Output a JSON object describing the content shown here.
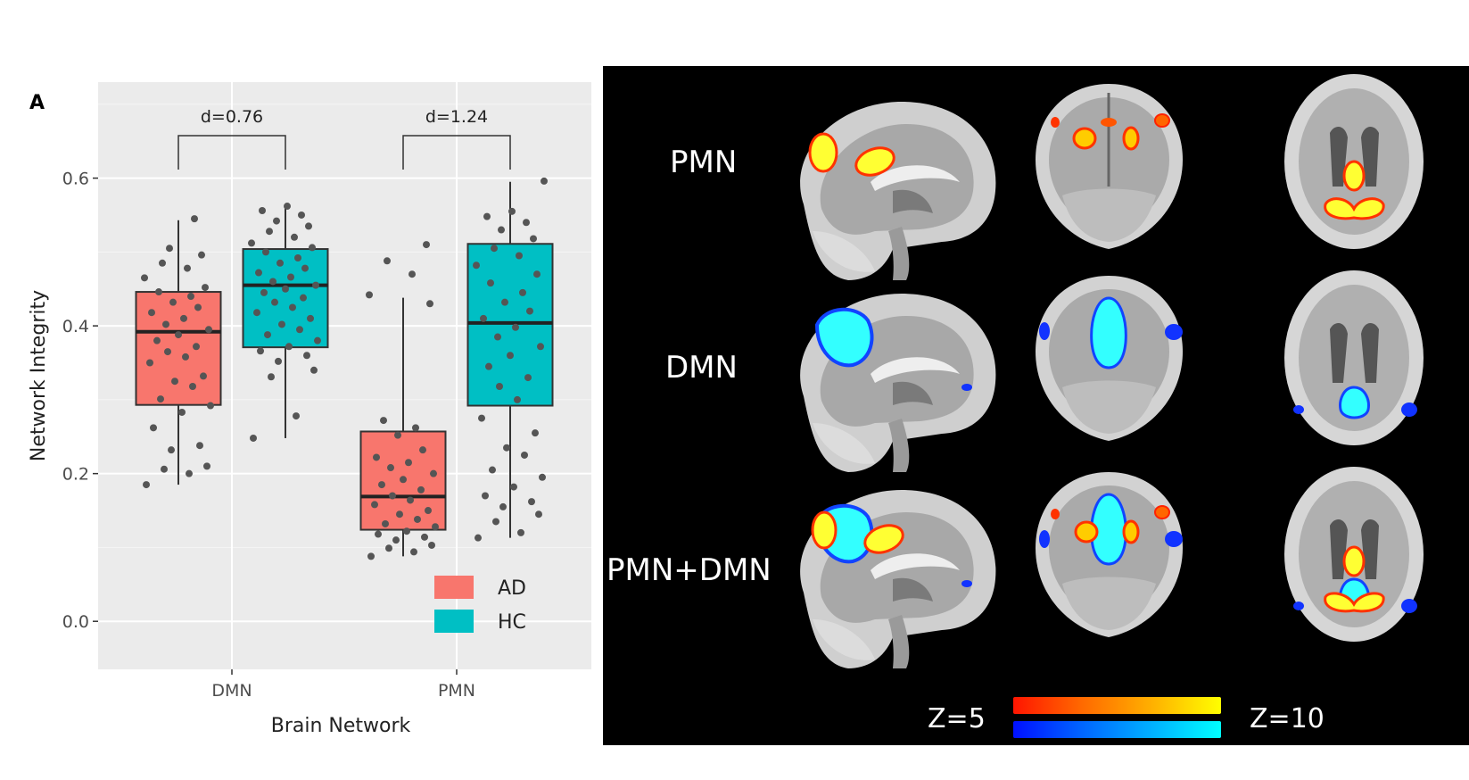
{
  "panel_label": "A",
  "chart_data": {
    "type": "box",
    "xlabel": "Brain Network",
    "ylabel": "Network Integrity",
    "categories": [
      "DMN",
      "PMN"
    ],
    "ylim": [
      -0.065,
      0.73
    ],
    "yticks": [
      0.0,
      0.2,
      0.4,
      0.6
    ],
    "ytick_labels": [
      "0.0",
      "0.2",
      "0.4",
      "0.6"
    ],
    "grid": true,
    "legend_position": "bottom-right",
    "series": [
      {
        "name": "AD",
        "color": "#F8766D",
        "boxes": [
          {
            "category": "DMN",
            "whisker_low": 0.185,
            "q1": 0.293,
            "median": 0.392,
            "q3": 0.446,
            "whisker_high": 0.543,
            "points": [
              0.185,
              0.2,
              0.206,
              0.21,
              0.232,
              0.238,
              0.262,
              0.283,
              0.292,
              0.301,
              0.318,
              0.325,
              0.332,
              0.35,
              0.358,
              0.365,
              0.372,
              0.38,
              0.388,
              0.395,
              0.402,
              0.41,
              0.418,
              0.425,
              0.432,
              0.44,
              0.446,
              0.452,
              0.465,
              0.478,
              0.485,
              0.496,
              0.505,
              0.545
            ]
          },
          {
            "category": "PMN",
            "whisker_low": 0.088,
            "q1": 0.124,
            "median": 0.169,
            "q3": 0.257,
            "whisker_high": 0.438,
            "points": [
              0.088,
              0.094,
              0.099,
              0.103,
              0.11,
              0.114,
              0.118,
              0.122,
              0.128,
              0.132,
              0.138,
              0.145,
              0.15,
              0.158,
              0.164,
              0.17,
              0.178,
              0.185,
              0.192,
              0.2,
              0.208,
              0.215,
              0.222,
              0.232,
              0.252,
              0.262,
              0.272,
              0.43,
              0.442,
              0.47,
              0.488,
              0.51
            ]
          }
        ]
      },
      {
        "name": "HC",
        "color": "#00BFC4",
        "boxes": [
          {
            "category": "DMN",
            "whisker_low": 0.248,
            "q1": 0.371,
            "median": 0.455,
            "q3": 0.504,
            "whisker_high": 0.561,
            "points": [
              0.248,
              0.278,
              0.331,
              0.34,
              0.352,
              0.36,
              0.366,
              0.372,
              0.38,
              0.388,
              0.395,
              0.402,
              0.41,
              0.418,
              0.425,
              0.432,
              0.438,
              0.445,
              0.45,
              0.455,
              0.46,
              0.466,
              0.472,
              0.478,
              0.485,
              0.492,
              0.5,
              0.506,
              0.512,
              0.52,
              0.528,
              0.535,
              0.542,
              0.55,
              0.556,
              0.562
            ]
          },
          {
            "category": "PMN",
            "whisker_low": 0.113,
            "q1": 0.292,
            "median": 0.404,
            "q3": 0.511,
            "whisker_high": 0.595,
            "points": [
              0.113,
              0.12,
              0.135,
              0.145,
              0.155,
              0.162,
              0.17,
              0.182,
              0.195,
              0.205,
              0.225,
              0.235,
              0.255,
              0.275,
              0.3,
              0.318,
              0.33,
              0.345,
              0.36,
              0.372,
              0.385,
              0.398,
              0.41,
              0.42,
              0.432,
              0.445,
              0.458,
              0.47,
              0.482,
              0.495,
              0.505,
              0.518,
              0.53,
              0.54,
              0.548,
              0.555,
              0.596
            ]
          }
        ]
      }
    ],
    "annotations": [
      {
        "category": "DMN",
        "text": "d=0.76"
      },
      {
        "category": "PMN",
        "text": "d=1.24"
      }
    ]
  },
  "right_panel": {
    "rows": [
      {
        "label": "PMN"
      },
      {
        "label": "DMN"
      },
      {
        "label": "PMN+DMN"
      }
    ],
    "colorbar": {
      "min_label": "Z=5",
      "max_label": "Z=10",
      "warm_colors": [
        "#ff1500",
        "#ff6a00",
        "#ffb000",
        "#ffff00"
      ],
      "cool_colors": [
        "#0010ff",
        "#0066ff",
        "#00b0ff",
        "#00ffff"
      ]
    }
  }
}
